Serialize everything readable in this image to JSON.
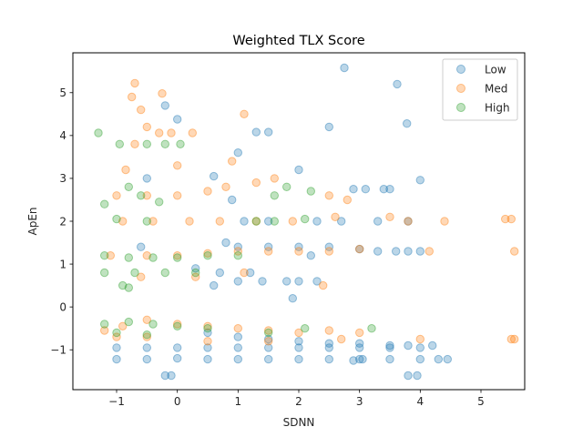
{
  "chart_data": {
    "type": "scatter",
    "title": "Weighted TLX Score",
    "xlabel": "SDNN",
    "ylabel": "ApEn",
    "xlim": [
      -1.72,
      5.72
    ],
    "ylim": [
      -1.93,
      5.93
    ],
    "xticks": [
      -1,
      0,
      1,
      2,
      3,
      4,
      5
    ],
    "xtick_labels": [
      "−1",
      "0",
      "1",
      "2",
      "3",
      "4",
      "5"
    ],
    "yticks": [
      -1,
      0,
      1,
      2,
      3,
      4,
      5
    ],
    "ytick_labels": [
      "−1",
      "0",
      "1",
      "2",
      "3",
      "4",
      "5"
    ],
    "grid": false,
    "legend_position": "top-right",
    "series": [
      {
        "name": "Low",
        "color": "#1f77b4",
        "alpha": 0.3,
        "points": [
          [
            2.75,
            5.58
          ],
          [
            3.62,
            5.2
          ],
          [
            3.78,
            4.28
          ],
          [
            2.5,
            4.2
          ],
          [
            1.3,
            4.08
          ],
          [
            1.5,
            4.08
          ],
          [
            0.0,
            4.38
          ],
          [
            -0.2,
            4.7
          ],
          [
            1.0,
            3.6
          ],
          [
            0.6,
            3.05
          ],
          [
            -0.5,
            3.0
          ],
          [
            4.0,
            2.96
          ],
          [
            0.9,
            2.5
          ],
          [
            2.0,
            3.2
          ],
          [
            2.3,
            2.0
          ],
          [
            2.9,
            2.75
          ],
          [
            3.1,
            2.75
          ],
          [
            3.4,
            2.75
          ],
          [
            3.5,
            2.75
          ],
          [
            3.8,
            2.0
          ],
          [
            1.1,
            2.0
          ],
          [
            1.5,
            2.0
          ],
          [
            2.7,
            2.0
          ],
          [
            3.3,
            2.0
          ],
          [
            -0.6,
            1.4
          ],
          [
            0.8,
            1.5
          ],
          [
            1.0,
            1.4
          ],
          [
            1.5,
            1.4
          ],
          [
            2.0,
            1.4
          ],
          [
            2.5,
            1.4
          ],
          [
            3.0,
            1.35
          ],
          [
            3.3,
            1.3
          ],
          [
            3.6,
            1.3
          ],
          [
            3.8,
            1.3
          ],
          [
            4.0,
            1.3
          ],
          [
            2.2,
            1.2
          ],
          [
            0.3,
            0.9
          ],
          [
            0.7,
            0.8
          ],
          [
            1.2,
            0.8
          ],
          [
            1.8,
            0.6
          ],
          [
            2.0,
            0.6
          ],
          [
            2.3,
            0.6
          ],
          [
            0.6,
            0.5
          ],
          [
            1.0,
            0.6
          ],
          [
            1.4,
            0.6
          ],
          [
            1.9,
            0.2
          ],
          [
            0.5,
            -0.6
          ],
          [
            1.0,
            -0.7
          ],
          [
            1.5,
            -0.75
          ],
          [
            2.0,
            -0.8
          ],
          [
            2.5,
            -0.85
          ],
          [
            3.0,
            -0.85
          ],
          [
            3.5,
            -0.9
          ],
          [
            3.8,
            -0.9
          ],
          [
            4.0,
            -0.95
          ],
          [
            4.2,
            -0.9
          ],
          [
            -1.0,
            -0.95
          ],
          [
            -0.5,
            -0.95
          ],
          [
            0.0,
            -0.95
          ],
          [
            0.5,
            -0.95
          ],
          [
            1.0,
            -0.95
          ],
          [
            1.5,
            -0.95
          ],
          [
            2.0,
            -0.95
          ],
          [
            2.5,
            -0.95
          ],
          [
            3.0,
            -0.95
          ],
          [
            3.5,
            -0.95
          ],
          [
            0.0,
            -1.2
          ],
          [
            0.5,
            -1.22
          ],
          [
            1.0,
            -1.22
          ],
          [
            1.5,
            -1.22
          ],
          [
            2.0,
            -1.22
          ],
          [
            2.5,
            -1.22
          ],
          [
            3.0,
            -1.22
          ],
          [
            3.5,
            -1.22
          ],
          [
            4.0,
            -1.22
          ],
          [
            4.3,
            -1.22
          ],
          [
            4.45,
            -1.22
          ],
          [
            -1.0,
            -1.22
          ],
          [
            -0.5,
            -1.22
          ],
          [
            -0.2,
            -1.6
          ],
          [
            -0.1,
            -1.6
          ],
          [
            3.8,
            -1.6
          ],
          [
            3.95,
            -1.6
          ],
          [
            3.05,
            -1.22
          ],
          [
            2.9,
            -1.25
          ]
        ]
      },
      {
        "name": "Med",
        "color": "#ff7f0e",
        "alpha": 0.3,
        "points": [
          [
            -0.7,
            5.22
          ],
          [
            -0.75,
            4.9
          ],
          [
            -0.25,
            4.98
          ],
          [
            -0.6,
            4.6
          ],
          [
            -0.5,
            4.2
          ],
          [
            -0.3,
            4.06
          ],
          [
            -0.1,
            4.06
          ],
          [
            0.25,
            4.06
          ],
          [
            1.1,
            4.5
          ],
          [
            -0.7,
            3.8
          ],
          [
            -0.85,
            3.2
          ],
          [
            0.0,
            3.3
          ],
          [
            0.9,
            3.4
          ],
          [
            -1.0,
            2.6
          ],
          [
            -0.5,
            2.6
          ],
          [
            0.0,
            2.6
          ],
          [
            0.5,
            2.7
          ],
          [
            0.8,
            2.8
          ],
          [
            1.3,
            2.9
          ],
          [
            1.6,
            3.0
          ],
          [
            2.5,
            2.6
          ],
          [
            2.8,
            2.5
          ],
          [
            -0.9,
            2.0
          ],
          [
            -0.4,
            2.0
          ],
          [
            0.2,
            2.0
          ],
          [
            0.7,
            2.0
          ],
          [
            1.3,
            2.0
          ],
          [
            1.9,
            2.0
          ],
          [
            2.6,
            2.1
          ],
          [
            3.5,
            2.1
          ],
          [
            3.8,
            2.0
          ],
          [
            5.4,
            2.05
          ],
          [
            5.5,
            2.05
          ],
          [
            4.4,
            2.0
          ],
          [
            -1.1,
            1.2
          ],
          [
            -0.5,
            1.2
          ],
          [
            0.0,
            1.2
          ],
          [
            0.5,
            1.25
          ],
          [
            1.0,
            1.3
          ],
          [
            1.5,
            1.3
          ],
          [
            2.0,
            1.3
          ],
          [
            2.5,
            1.3
          ],
          [
            3.0,
            1.35
          ],
          [
            4.15,
            1.3
          ],
          [
            5.55,
            1.3
          ],
          [
            -0.6,
            0.7
          ],
          [
            0.3,
            0.7
          ],
          [
            1.1,
            0.8
          ],
          [
            2.4,
            0.5
          ],
          [
            -0.5,
            -0.3
          ],
          [
            0.0,
            -0.4
          ],
          [
            0.5,
            -0.45
          ],
          [
            1.0,
            -0.5
          ],
          [
            1.5,
            -0.55
          ],
          [
            2.0,
            -0.6
          ],
          [
            2.5,
            -0.55
          ],
          [
            3.0,
            -0.6
          ],
          [
            -1.0,
            -0.7
          ],
          [
            -0.5,
            -0.7
          ],
          [
            0.5,
            -0.8
          ],
          [
            1.5,
            -0.8
          ],
          [
            2.7,
            -0.75
          ],
          [
            4.0,
            -0.75
          ],
          [
            5.55,
            -0.75
          ],
          [
            5.5,
            -0.75
          ],
          [
            -1.2,
            -0.55
          ],
          [
            -0.9,
            -0.45
          ]
        ]
      },
      {
        "name": "High",
        "color": "#2ca02c",
        "alpha": 0.3,
        "points": [
          [
            -1.3,
            4.06
          ],
          [
            -0.95,
            3.8
          ],
          [
            -0.5,
            3.8
          ],
          [
            -0.2,
            3.8
          ],
          [
            0.05,
            3.8
          ],
          [
            -0.8,
            2.8
          ],
          [
            -1.2,
            2.4
          ],
          [
            -0.6,
            2.6
          ],
          [
            -0.3,
            2.45
          ],
          [
            1.8,
            2.8
          ],
          [
            1.6,
            2.6
          ],
          [
            2.2,
            2.7
          ],
          [
            -1.0,
            2.05
          ],
          [
            -0.5,
            2.0
          ],
          [
            1.3,
            2.0
          ],
          [
            1.6,
            2.0
          ],
          [
            2.1,
            2.05
          ],
          [
            -1.2,
            1.2
          ],
          [
            -0.8,
            1.15
          ],
          [
            -0.4,
            1.15
          ],
          [
            0.0,
            1.15
          ],
          [
            0.5,
            1.2
          ],
          [
            1.0,
            1.2
          ],
          [
            -1.2,
            0.8
          ],
          [
            -0.7,
            0.8
          ],
          [
            -0.2,
            0.8
          ],
          [
            0.3,
            0.8
          ],
          [
            -0.8,
            0.45
          ],
          [
            -0.9,
            0.5
          ],
          [
            -1.2,
            -0.4
          ],
          [
            -0.8,
            -0.35
          ],
          [
            -0.4,
            -0.4
          ],
          [
            0.0,
            -0.45
          ],
          [
            0.5,
            -0.5
          ],
          [
            -1.0,
            -0.6
          ],
          [
            -0.5,
            -0.65
          ],
          [
            3.2,
            -0.5
          ],
          [
            2.1,
            -0.5
          ],
          [
            1.5,
            -0.6
          ]
        ]
      }
    ]
  }
}
